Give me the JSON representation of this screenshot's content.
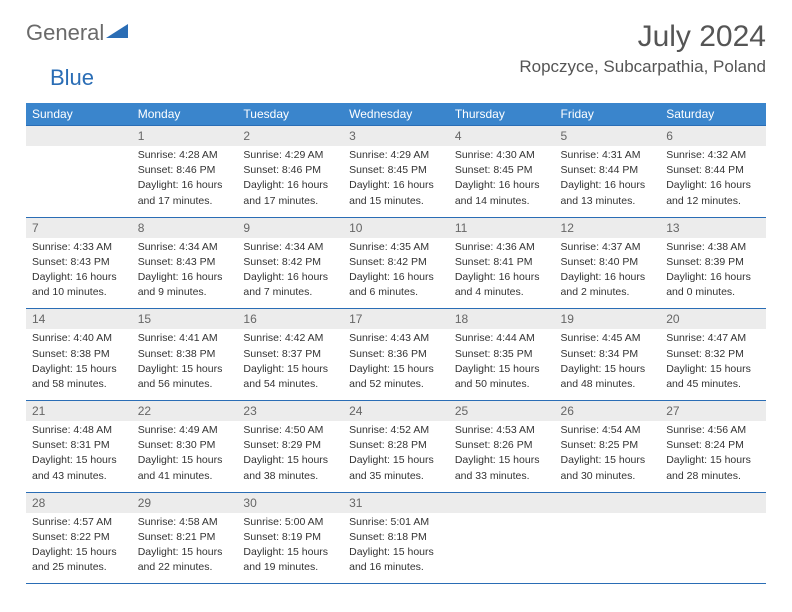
{
  "logo": {
    "part1": "General",
    "part2": "Blue"
  },
  "title": "July 2024",
  "location": "Ropczyce, Subcarpathia, Poland",
  "colors": {
    "header_bg": "#3a85cc",
    "border": "#2a6db5",
    "daynum_bg": "#ececec",
    "text": "#333333",
    "title_text": "#555555"
  },
  "day_headers": [
    "Sunday",
    "Monday",
    "Tuesday",
    "Wednesday",
    "Thursday",
    "Friday",
    "Saturday"
  ],
  "weeks": [
    [
      {
        "n": "",
        "lines": []
      },
      {
        "n": "1",
        "lines": [
          "Sunrise: 4:28 AM",
          "Sunset: 8:46 PM",
          "Daylight: 16 hours",
          "and 17 minutes."
        ]
      },
      {
        "n": "2",
        "lines": [
          "Sunrise: 4:29 AM",
          "Sunset: 8:46 PM",
          "Daylight: 16 hours",
          "and 17 minutes."
        ]
      },
      {
        "n": "3",
        "lines": [
          "Sunrise: 4:29 AM",
          "Sunset: 8:45 PM",
          "Daylight: 16 hours",
          "and 15 minutes."
        ]
      },
      {
        "n": "4",
        "lines": [
          "Sunrise: 4:30 AM",
          "Sunset: 8:45 PM",
          "Daylight: 16 hours",
          "and 14 minutes."
        ]
      },
      {
        "n": "5",
        "lines": [
          "Sunrise: 4:31 AM",
          "Sunset: 8:44 PM",
          "Daylight: 16 hours",
          "and 13 minutes."
        ]
      },
      {
        "n": "6",
        "lines": [
          "Sunrise: 4:32 AM",
          "Sunset: 8:44 PM",
          "Daylight: 16 hours",
          "and 12 minutes."
        ]
      }
    ],
    [
      {
        "n": "7",
        "lines": [
          "Sunrise: 4:33 AM",
          "Sunset: 8:43 PM",
          "Daylight: 16 hours",
          "and 10 minutes."
        ]
      },
      {
        "n": "8",
        "lines": [
          "Sunrise: 4:34 AM",
          "Sunset: 8:43 PM",
          "Daylight: 16 hours",
          "and 9 minutes."
        ]
      },
      {
        "n": "9",
        "lines": [
          "Sunrise: 4:34 AM",
          "Sunset: 8:42 PM",
          "Daylight: 16 hours",
          "and 7 minutes."
        ]
      },
      {
        "n": "10",
        "lines": [
          "Sunrise: 4:35 AM",
          "Sunset: 8:42 PM",
          "Daylight: 16 hours",
          "and 6 minutes."
        ]
      },
      {
        "n": "11",
        "lines": [
          "Sunrise: 4:36 AM",
          "Sunset: 8:41 PM",
          "Daylight: 16 hours",
          "and 4 minutes."
        ]
      },
      {
        "n": "12",
        "lines": [
          "Sunrise: 4:37 AM",
          "Sunset: 8:40 PM",
          "Daylight: 16 hours",
          "and 2 minutes."
        ]
      },
      {
        "n": "13",
        "lines": [
          "Sunrise: 4:38 AM",
          "Sunset: 8:39 PM",
          "Daylight: 16 hours",
          "and 0 minutes."
        ]
      }
    ],
    [
      {
        "n": "14",
        "lines": [
          "Sunrise: 4:40 AM",
          "Sunset: 8:38 PM",
          "Daylight: 15 hours",
          "and 58 minutes."
        ]
      },
      {
        "n": "15",
        "lines": [
          "Sunrise: 4:41 AM",
          "Sunset: 8:38 PM",
          "Daylight: 15 hours",
          "and 56 minutes."
        ]
      },
      {
        "n": "16",
        "lines": [
          "Sunrise: 4:42 AM",
          "Sunset: 8:37 PM",
          "Daylight: 15 hours",
          "and 54 minutes."
        ]
      },
      {
        "n": "17",
        "lines": [
          "Sunrise: 4:43 AM",
          "Sunset: 8:36 PM",
          "Daylight: 15 hours",
          "and 52 minutes."
        ]
      },
      {
        "n": "18",
        "lines": [
          "Sunrise: 4:44 AM",
          "Sunset: 8:35 PM",
          "Daylight: 15 hours",
          "and 50 minutes."
        ]
      },
      {
        "n": "19",
        "lines": [
          "Sunrise: 4:45 AM",
          "Sunset: 8:34 PM",
          "Daylight: 15 hours",
          "and 48 minutes."
        ]
      },
      {
        "n": "20",
        "lines": [
          "Sunrise: 4:47 AM",
          "Sunset: 8:32 PM",
          "Daylight: 15 hours",
          "and 45 minutes."
        ]
      }
    ],
    [
      {
        "n": "21",
        "lines": [
          "Sunrise: 4:48 AM",
          "Sunset: 8:31 PM",
          "Daylight: 15 hours",
          "and 43 minutes."
        ]
      },
      {
        "n": "22",
        "lines": [
          "Sunrise: 4:49 AM",
          "Sunset: 8:30 PM",
          "Daylight: 15 hours",
          "and 41 minutes."
        ]
      },
      {
        "n": "23",
        "lines": [
          "Sunrise: 4:50 AM",
          "Sunset: 8:29 PM",
          "Daylight: 15 hours",
          "and 38 minutes."
        ]
      },
      {
        "n": "24",
        "lines": [
          "Sunrise: 4:52 AM",
          "Sunset: 8:28 PM",
          "Daylight: 15 hours",
          "and 35 minutes."
        ]
      },
      {
        "n": "25",
        "lines": [
          "Sunrise: 4:53 AM",
          "Sunset: 8:26 PM",
          "Daylight: 15 hours",
          "and 33 minutes."
        ]
      },
      {
        "n": "26",
        "lines": [
          "Sunrise: 4:54 AM",
          "Sunset: 8:25 PM",
          "Daylight: 15 hours",
          "and 30 minutes."
        ]
      },
      {
        "n": "27",
        "lines": [
          "Sunrise: 4:56 AM",
          "Sunset: 8:24 PM",
          "Daylight: 15 hours",
          "and 28 minutes."
        ]
      }
    ],
    [
      {
        "n": "28",
        "lines": [
          "Sunrise: 4:57 AM",
          "Sunset: 8:22 PM",
          "Daylight: 15 hours",
          "and 25 minutes."
        ]
      },
      {
        "n": "29",
        "lines": [
          "Sunrise: 4:58 AM",
          "Sunset: 8:21 PM",
          "Daylight: 15 hours",
          "and 22 minutes."
        ]
      },
      {
        "n": "30",
        "lines": [
          "Sunrise: 5:00 AM",
          "Sunset: 8:19 PM",
          "Daylight: 15 hours",
          "and 19 minutes."
        ]
      },
      {
        "n": "31",
        "lines": [
          "Sunrise: 5:01 AM",
          "Sunset: 8:18 PM",
          "Daylight: 15 hours",
          "and 16 minutes."
        ]
      },
      {
        "n": "",
        "lines": []
      },
      {
        "n": "",
        "lines": []
      },
      {
        "n": "",
        "lines": []
      }
    ]
  ]
}
